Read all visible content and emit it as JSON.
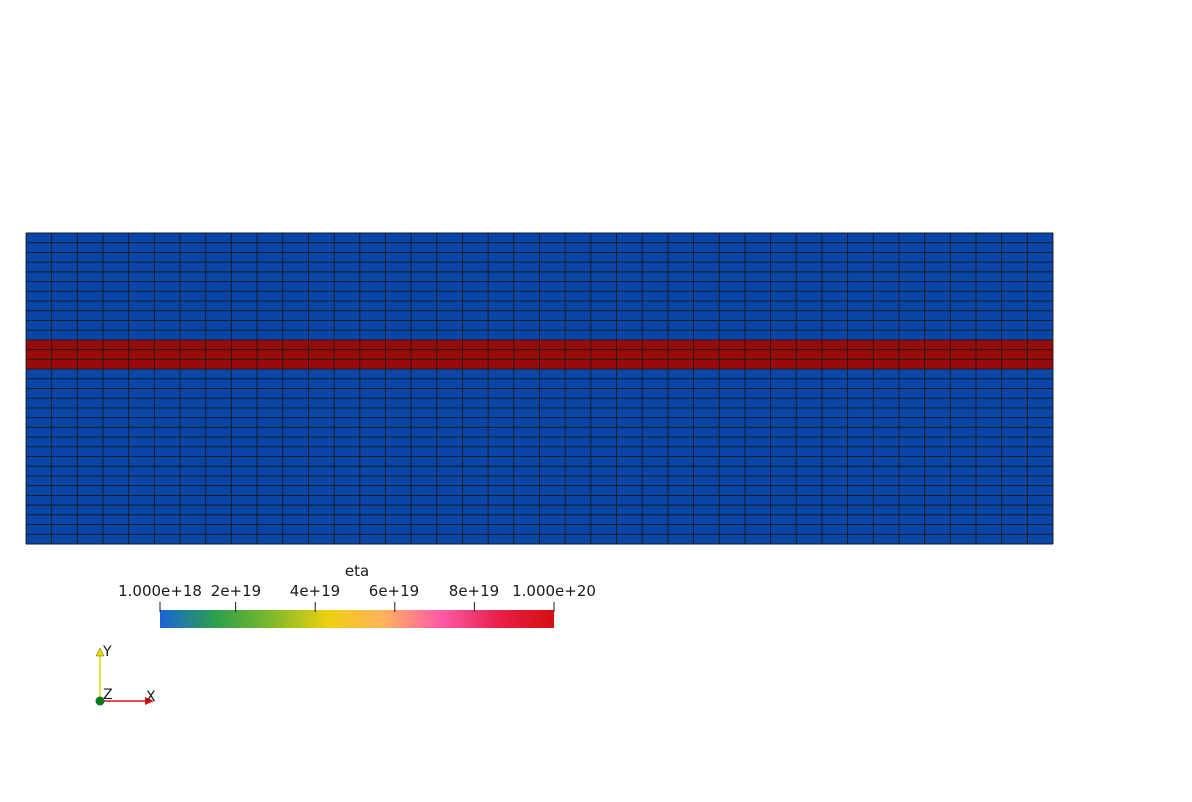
{
  "viewport": {
    "background": "#ffffff"
  },
  "mesh": {
    "columns": 40,
    "rows": 32,
    "band_rows": [
      11,
      12,
      13
    ],
    "colors": {
      "background_material": "#0a45a8",
      "band_material": "#990b08",
      "edges": "#1a1a1a"
    }
  },
  "colorbar": {
    "title": "eta",
    "min": 1e+18,
    "max": 1e+20,
    "ticks": [
      {
        "label": "1.000e+18",
        "value": 1e+18
      },
      {
        "label": "2e+19",
        "value": 2e+19
      },
      {
        "label": "4e+19",
        "value": 4e+19
      },
      {
        "label": "6e+19",
        "value": 6e+19
      },
      {
        "label": "8e+19",
        "value": 8e+19
      },
      {
        "label": "1.000e+20",
        "value": 1e+20
      }
    ],
    "gradient_stops": [
      "#1a63d8",
      "#2da04a",
      "#7fba2a",
      "#f0d010",
      "#ffb060",
      "#ff5aa8",
      "#e8204a",
      "#d40f10"
    ]
  },
  "axes_triad": {
    "x_label": "X",
    "y_label": "Y",
    "z_label": "Z",
    "colors": {
      "x": "#e01010",
      "y": "#e6d800",
      "z": "#0a7a20"
    }
  }
}
